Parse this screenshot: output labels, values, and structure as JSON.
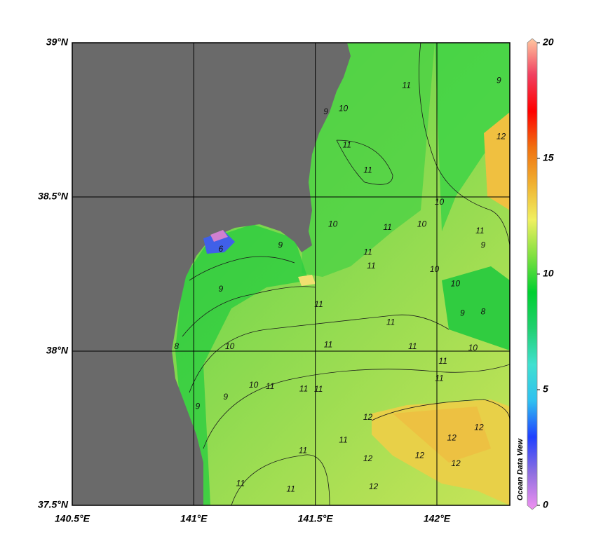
{
  "map": {
    "xlim": [
      140.5,
      142.3
    ],
    "ylim": [
      37.5,
      39
    ],
    "xticks": [
      {
        "value": 140.5,
        "label": "140.5°E"
      },
      {
        "value": 141,
        "label": "141°E"
      },
      {
        "value": 141.5,
        "label": "141.5°E"
      },
      {
        "value": 142,
        "label": "142°E"
      }
    ],
    "yticks": [
      {
        "value": 37.5,
        "label": "37.5°N"
      },
      {
        "value": 38,
        "label": "38°N"
      },
      {
        "value": 38.5,
        "label": "38.5°N"
      },
      {
        "value": 39,
        "label": "39°N"
      }
    ],
    "grid": true,
    "contour_labels": [
      {
        "lon": 141.875,
        "lat": 38.861,
        "value": 11
      },
      {
        "lon": 141.615,
        "lat": 38.786,
        "value": 10
      },
      {
        "lon": 141.543,
        "lat": 38.775,
        "value": 9
      },
      {
        "lon": 141.63,
        "lat": 38.668,
        "value": 11
      },
      {
        "lon": 141.716,
        "lat": 38.586,
        "value": 11
      },
      {
        "lon": 142.255,
        "lat": 38.877,
        "value": 9
      },
      {
        "lon": 142.264,
        "lat": 38.695,
        "value": 12
      },
      {
        "lon": 142.01,
        "lat": 38.482,
        "value": 10
      },
      {
        "lon": 141.938,
        "lat": 38.411,
        "value": 10
      },
      {
        "lon": 141.797,
        "lat": 38.4,
        "value": 11
      },
      {
        "lon": 142.177,
        "lat": 38.389,
        "value": 11
      },
      {
        "lon": 141.572,
        "lat": 38.411,
        "value": 10
      },
      {
        "lon": 141.356,
        "lat": 38.343,
        "value": 9
      },
      {
        "lon": 141.111,
        "lat": 38.33,
        "value": 6
      },
      {
        "lon": 141.716,
        "lat": 38.32,
        "value": 11
      },
      {
        "lon": 141.73,
        "lat": 38.275,
        "value": 11
      },
      {
        "lon": 141.99,
        "lat": 38.264,
        "value": 10
      },
      {
        "lon": 142.19,
        "lat": 38.343,
        "value": 9
      },
      {
        "lon": 142.076,
        "lat": 38.218,
        "value": 10
      },
      {
        "lon": 141.514,
        "lat": 38.15,
        "value": 11
      },
      {
        "lon": 141.81,
        "lat": 38.093,
        "value": 11
      },
      {
        "lon": 141.111,
        "lat": 38.2,
        "value": 9
      },
      {
        "lon": 142.19,
        "lat": 38.127,
        "value": 8
      },
      {
        "lon": 142.105,
        "lat": 38.122,
        "value": 9
      },
      {
        "lon": 140.929,
        "lat": 38.014,
        "value": 8
      },
      {
        "lon": 141.148,
        "lat": 38.014,
        "value": 10
      },
      {
        "lon": 141.553,
        "lat": 38.02,
        "value": 11
      },
      {
        "lon": 141.9,
        "lat": 38.014,
        "value": 11
      },
      {
        "lon": 142.148,
        "lat": 38.009,
        "value": 10
      },
      {
        "lon": 142.025,
        "lat": 37.966,
        "value": 11
      },
      {
        "lon": 141.246,
        "lat": 37.889,
        "value": 10
      },
      {
        "lon": 141.314,
        "lat": 37.884,
        "value": 11
      },
      {
        "lon": 141.452,
        "lat": 37.877,
        "value": 11
      },
      {
        "lon": 141.513,
        "lat": 37.875,
        "value": 11
      },
      {
        "lon": 141.131,
        "lat": 37.85,
        "value": 9
      },
      {
        "lon": 142.01,
        "lat": 37.911,
        "value": 11
      },
      {
        "lon": 141.016,
        "lat": 37.82,
        "value": 9
      },
      {
        "lon": 141.716,
        "lat": 37.784,
        "value": 12
      },
      {
        "lon": 142.173,
        "lat": 37.752,
        "value": 12
      },
      {
        "lon": 142.061,
        "lat": 37.718,
        "value": 12
      },
      {
        "lon": 141.615,
        "lat": 37.711,
        "value": 11
      },
      {
        "lon": 141.449,
        "lat": 37.677,
        "value": 11
      },
      {
        "lon": 141.716,
        "lat": 37.65,
        "value": 12
      },
      {
        "lon": 141.929,
        "lat": 37.661,
        "value": 12
      },
      {
        "lon": 142.078,
        "lat": 37.634,
        "value": 12
      },
      {
        "lon": 141.192,
        "lat": 37.57,
        "value": 11
      },
      {
        "lon": 141.399,
        "lat": 37.552,
        "value": 11
      },
      {
        "lon": 141.739,
        "lat": 37.559,
        "value": 12
      }
    ],
    "colorbar": {
      "clim": [
        0,
        20
      ],
      "ticks": [
        0,
        5,
        10,
        15,
        20
      ],
      "colors": [
        "#f090f0",
        "#9070e0",
        "#2040ff",
        "#30c0f0",
        "#40e0d0",
        "#20d070",
        "#00d030",
        "#80e040",
        "#f0f060",
        "#f0b030",
        "#f07010",
        "#ff0000",
        "#f04060",
        "#ffc8a0"
      ]
    },
    "watermark": "Ocean Data View"
  }
}
